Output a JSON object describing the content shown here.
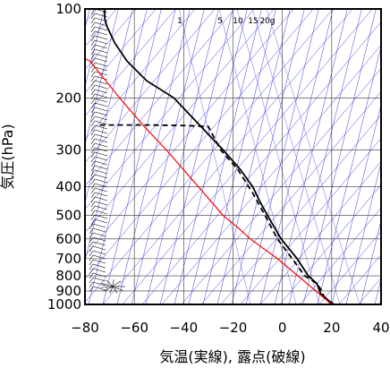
{
  "chart_data": {
    "type": "line",
    "xlabel": "気温(実線), 露点(破線)",
    "ylabel": "気圧(hPa)",
    "xlim": [
      -80,
      40
    ],
    "ylim": [
      1000,
      100
    ],
    "y_scale": "log",
    "x_ticks": [
      "−80",
      "−60",
      "−40",
      "−20",
      "0",
      "20",
      "40"
    ],
    "y_ticks": [
      "100",
      "200",
      "300",
      "400",
      "500",
      "600",
      "700",
      "800",
      "900",
      "1000"
    ],
    "mixing_ratio_labels": [
      "1",
      "5",
      "10",
      "15",
      "20g"
    ],
    "grid": true,
    "series": [
      {
        "style": "solid",
        "color": "#000000",
        "points": [
          [
            21,
            1000
          ],
          [
            19,
            975
          ],
          [
            17.5,
            950
          ],
          [
            15.5,
            920
          ],
          [
            14,
            850
          ],
          [
            10.5,
            800
          ],
          [
            6,
            700
          ],
          [
            -0.5,
            600
          ],
          [
            -6,
            500
          ],
          [
            -9,
            450
          ],
          [
            -12,
            400
          ],
          [
            -17,
            350
          ],
          [
            -24,
            300
          ],
          [
            -33,
            250
          ],
          [
            -44,
            200
          ],
          [
            -55,
            175
          ],
          [
            -63,
            150
          ],
          [
            -68,
            130
          ],
          [
            -71,
            115
          ],
          [
            -72,
            108
          ],
          [
            -72,
            100
          ]
        ]
      },
      {
        "style": "dashed",
        "color": "#000000",
        "points": [
          [
            20,
            1000
          ],
          [
            17,
            950
          ],
          [
            16,
            900
          ],
          [
            14,
            850
          ],
          [
            9,
            800
          ],
          [
            4,
            700
          ],
          [
            -2,
            600
          ],
          [
            -7,
            500
          ],
          [
            -12,
            420
          ],
          [
            -18,
            350
          ],
          [
            -25,
            300
          ],
          [
            -30,
            250
          ],
          [
            -40,
            248
          ],
          [
            -55,
            247
          ],
          [
            -75,
            247
          ]
        ]
      },
      {
        "style": "solid",
        "color": "#ff0000",
        "points": [
          [
            20,
            1000
          ],
          [
            10,
            850
          ],
          [
            -2,
            700
          ],
          [
            -13,
            600
          ],
          [
            -18,
            550
          ],
          [
            -24,
            500
          ],
          [
            -34,
            400
          ],
          [
            -47,
            300
          ],
          [
            -56,
            250
          ],
          [
            -66,
            200
          ],
          [
            -78,
            150
          ],
          [
            -82,
            145
          ]
        ]
      }
    ]
  }
}
